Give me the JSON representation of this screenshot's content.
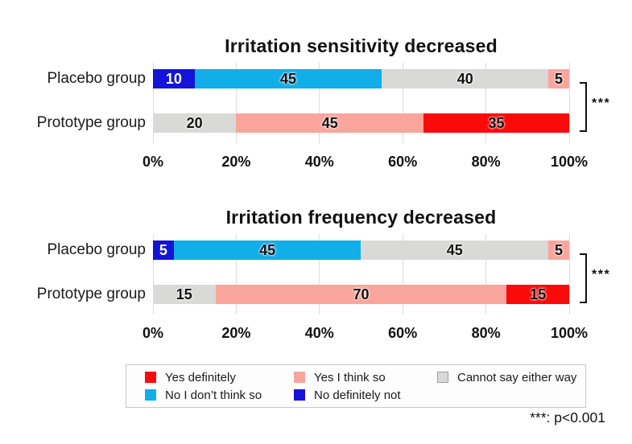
{
  "figure": {
    "background": "#ffffff"
  },
  "legend": {
    "items": [
      {
        "label": "Yes definitely",
        "color": "#FA0A0A"
      },
      {
        "label": "Yes I think so",
        "color": "#FAA59C"
      },
      {
        "label": "Cannot say either way",
        "color": "#D9D9D8",
        "border": "#9E9E9E"
      },
      {
        "label": "No I don’t think so",
        "color": "#12AEE8"
      },
      {
        "label": "No definitely not",
        "color": "#1414D8",
        "value_text_color": "#FFFFFF"
      }
    ]
  },
  "footnote": "***: p<0.001",
  "chart_data": [
    {
      "type": "bar",
      "orientation": "horizontal",
      "stacked": true,
      "title": "Irritation sensitivity decreased",
      "xlim": [
        0,
        100
      ],
      "x_ticks": [
        "0%",
        "20%",
        "40%",
        "60%",
        "80%",
        "100%"
      ],
      "grid": true,
      "significance": "***",
      "rows": [
        {
          "category": "Placebo group",
          "segments": [
            {
              "answer": "No definitely not",
              "value": 10
            },
            {
              "answer": "No I don’t think so",
              "value": 45
            },
            {
              "answer": "Cannot say either way",
              "value": 40
            },
            {
              "answer": "Yes I think so",
              "value": 5
            }
          ]
        },
        {
          "category": "Prototype group",
          "segments": [
            {
              "answer": "Cannot say either way",
              "value": 20
            },
            {
              "answer": "Yes I think so",
              "value": 45
            },
            {
              "answer": "Yes definitely",
              "value": 35
            }
          ]
        }
      ]
    },
    {
      "type": "bar",
      "orientation": "horizontal",
      "stacked": true,
      "title": "Irritation frequency decreased",
      "xlim": [
        0,
        100
      ],
      "x_ticks": [
        "0%",
        "20%",
        "40%",
        "60%",
        "80%",
        "100%"
      ],
      "grid": true,
      "significance": "***",
      "rows": [
        {
          "category": "Placebo group",
          "segments": [
            {
              "answer": "No definitely not",
              "value": 5
            },
            {
              "answer": "No I don’t think so",
              "value": 45
            },
            {
              "answer": "Cannot say either way",
              "value": 45
            },
            {
              "answer": "Yes I think so",
              "value": 5
            }
          ]
        },
        {
          "category": "Prototype group",
          "segments": [
            {
              "answer": "Cannot say either way",
              "value": 15
            },
            {
              "answer": "Yes I think so",
              "value": 70
            },
            {
              "answer": "Yes definitely",
              "value": 15
            }
          ]
        }
      ]
    }
  ]
}
